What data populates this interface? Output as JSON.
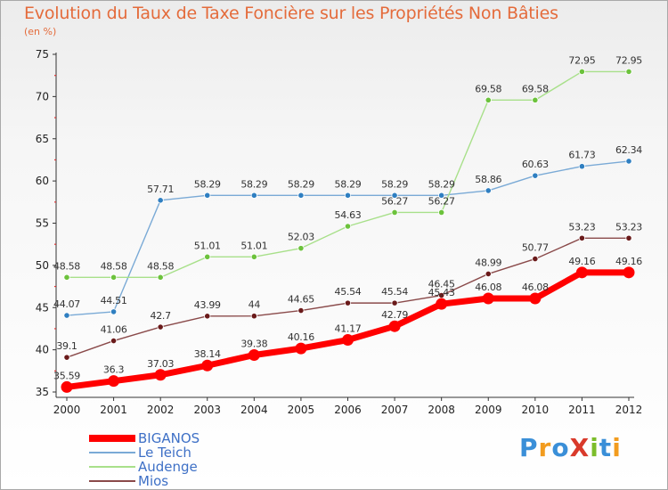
{
  "title": "Evolution du Taux de Taxe Foncière sur les Propriétés Non Bâties",
  "subtitle": "(en %)",
  "logo": {
    "text": "ProXiti",
    "letters": [
      "P",
      "r",
      "o",
      "X",
      "i",
      "t",
      "i"
    ],
    "colors": [
      "#3a8fd8",
      "#f29c1f",
      "#3a8fd8",
      "#d93a2b",
      "#7cbd2b",
      "#3a8fd8",
      "#f29c1f"
    ]
  },
  "chart_data": {
    "type": "line",
    "x": [
      2000,
      2001,
      2002,
      2003,
      2004,
      2005,
      2006,
      2007,
      2008,
      2009,
      2010,
      2011,
      2012
    ],
    "x_tick_labels": [
      "2000",
      "2001",
      "2002",
      "2003",
      "2004",
      "2005",
      "2006",
      "2007",
      "2008",
      "2009",
      "2010",
      "2011",
      "2012"
    ],
    "ylim": [
      35,
      75
    ],
    "y_ticks": [
      35,
      40,
      45,
      50,
      55,
      60,
      65,
      70,
      75
    ],
    "grid": false,
    "legend_position": "bottom-left",
    "series": [
      {
        "name": "BIGANOS",
        "color": "#ff0000",
        "marker": "#ff0000",
        "values": [
          35.59,
          36.3,
          37.03,
          38.14,
          39.38,
          40.16,
          41.17,
          42.79,
          45.43,
          46.08,
          46.08,
          49.16,
          49.16
        ],
        "labels": [
          "35.59",
          "36.3",
          "37.03",
          "38.14",
          "39.38",
          "40.16",
          "41.17",
          "42.79",
          "45.43",
          "46.08",
          "46.08",
          "49.16",
          "49.16"
        ]
      },
      {
        "name": "Le Teich",
        "color": "#7aaad6",
        "marker": "#2f7fc1",
        "values": [
          44.07,
          44.51,
          57.71,
          58.29,
          58.29,
          58.29,
          58.29,
          58.29,
          58.29,
          58.86,
          60.63,
          61.73,
          62.34
        ],
        "labels": [
          "44.07",
          "44.51",
          "57.71",
          "58.29",
          "58.29",
          "58.29",
          "58.29",
          "58.29",
          "58.29",
          "58.86",
          "60.63",
          "61.73",
          "62.34"
        ]
      },
      {
        "name": "Audenge",
        "color": "#a8e08a",
        "marker": "#6cc23c",
        "values": [
          48.58,
          48.58,
          48.58,
          51.01,
          51.01,
          52.03,
          54.63,
          56.27,
          56.27,
          69.58,
          69.58,
          72.95,
          72.95
        ],
        "labels": [
          "48.58",
          "48.58",
          "48.58",
          "51.01",
          "51.01",
          "52.03",
          "54.63",
          "56.27",
          "56.27",
          "69.58",
          "69.58",
          "72.95",
          "72.95"
        ]
      },
      {
        "name": "Mios",
        "color": "#8a4a4a",
        "marker": "#6a1a1a",
        "values": [
          39.1,
          41.06,
          42.7,
          43.99,
          44.0,
          44.65,
          45.54,
          45.54,
          46.45,
          48.99,
          50.77,
          53.23,
          53.23
        ],
        "labels": [
          "39.1",
          "41.06",
          "42.7",
          "43.99",
          "44",
          "44.65",
          "45.54",
          "45.54",
          "46.45",
          "48.99",
          "50.77",
          "53.23",
          "53.23"
        ]
      }
    ]
  }
}
